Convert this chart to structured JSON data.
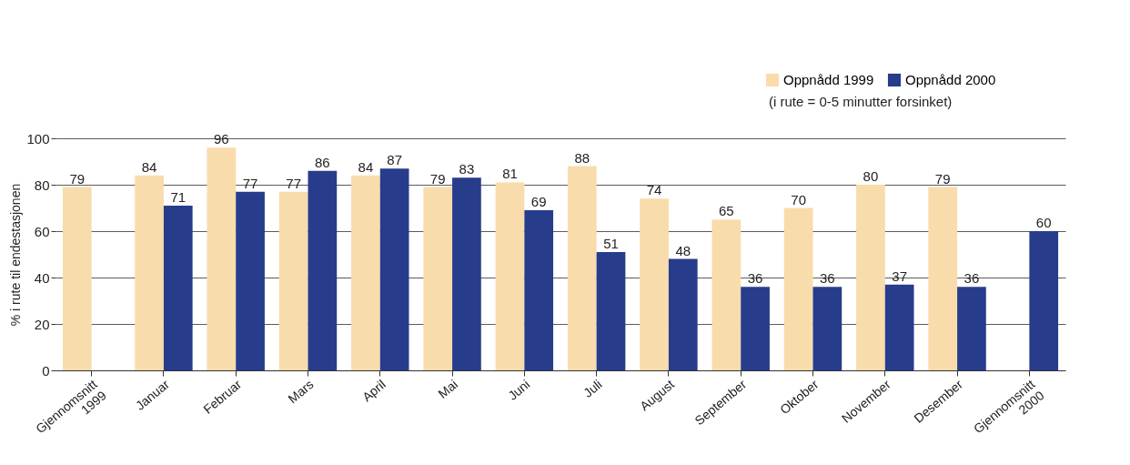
{
  "chart_data": {
    "type": "bar",
    "ylabel": "% i rute til endestasjonen",
    "categories": [
      "Gjennomsnitt 1999",
      "Januar",
      "Februar",
      "Mars",
      "April",
      "Mai",
      "Juni",
      "Juli",
      "August",
      "September",
      "Oktober",
      "November",
      "Desember",
      "Gjennomsnitt 2000"
    ],
    "series": [
      {
        "name": "Oppnådd 1999",
        "color": "#f8dcab",
        "values": [
          79,
          84,
          96,
          77,
          84,
          79,
          81,
          88,
          74,
          65,
          70,
          80,
          79,
          null
        ]
      },
      {
        "name": "Oppnådd 2000",
        "color": "#283c8c",
        "values": [
          null,
          71,
          77,
          86,
          87,
          83,
          69,
          51,
          48,
          36,
          36,
          37,
          36,
          60
        ]
      }
    ],
    "ylim": [
      0,
      100
    ],
    "yticks": [
      0,
      20,
      40,
      60,
      80,
      100
    ],
    "grid": "y",
    "legend": "top right",
    "data_labels": true,
    "annotations": [
      "(i rute = 0-5 minutter forsinket)"
    ]
  }
}
